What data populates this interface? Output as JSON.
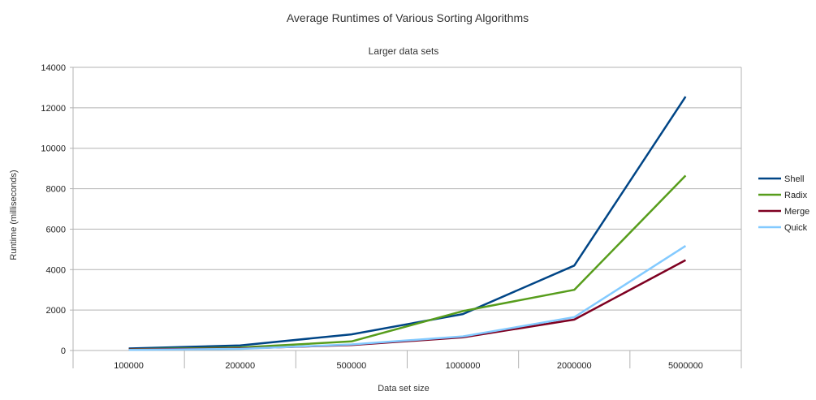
{
  "chart_data": {
    "type": "line",
    "title": "Average Runtimes of Various Sorting Algorithms",
    "subtitle": "Larger data sets",
    "xlabel": "Data set size",
    "ylabel": "Runtime (milliseconds)",
    "ylim": [
      0,
      14000
    ],
    "yticks": [
      "0",
      "2000",
      "4000",
      "6000",
      "8000",
      "10000",
      "12000",
      "14000"
    ],
    "categories": [
      "100000",
      "200000",
      "500000",
      "1000000",
      "2000000",
      "5000000"
    ],
    "grid": true,
    "legend": "right",
    "series": [
      {
        "name": "Shell",
        "color": "#004586",
        "values": [
          100,
          250,
          800,
          1800,
          4200,
          12550
        ]
      },
      {
        "name": "Radix",
        "color": "#579d1c",
        "values": [
          60,
          150,
          450,
          1950,
          3000,
          8650
        ]
      },
      {
        "name": "Merge",
        "color": "#7e0021",
        "values": [
          50,
          100,
          270,
          650,
          1530,
          4470
        ]
      },
      {
        "name": "Quick",
        "color": "#83caff",
        "values": [
          30,
          80,
          300,
          700,
          1650,
          5170
        ]
      }
    ]
  }
}
